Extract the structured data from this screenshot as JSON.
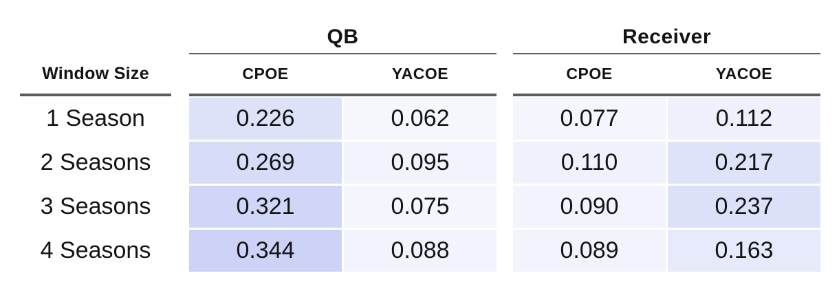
{
  "table": {
    "row_header": "Window Size",
    "groups": [
      {
        "label": "QB",
        "columns": [
          "CPOE",
          "YACOE"
        ]
      },
      {
        "label": "Receiver",
        "columns": [
          "CPOE",
          "YACOE"
        ]
      }
    ],
    "rows": [
      {
        "label": "1 Season",
        "cells": [
          {
            "value": "0.226",
            "color": "#dee2f9"
          },
          {
            "value": "0.062",
            "color": "#f6f7fd"
          },
          {
            "value": "0.077",
            "color": "#f4f5fd"
          },
          {
            "value": "0.112",
            "color": "#eef1fc"
          }
        ]
      },
      {
        "label": "2 Seasons",
        "cells": [
          {
            "value": "0.269",
            "color": "#d7ddf8"
          },
          {
            "value": "0.095",
            "color": "#f1f3fd"
          },
          {
            "value": "0.110",
            "color": "#eff1fc"
          },
          {
            "value": "0.217",
            "color": "#dfe3f9"
          }
        ]
      },
      {
        "label": "3 Seasons",
        "cells": [
          {
            "value": "0.321",
            "color": "#cfd6f7"
          },
          {
            "value": "0.075",
            "color": "#f4f5fd"
          },
          {
            "value": "0.090",
            "color": "#f2f3fd"
          },
          {
            "value": "0.237",
            "color": "#dce1f9"
          }
        ]
      },
      {
        "label": "4 Seasons",
        "cells": [
          {
            "value": "0.344",
            "color": "#ccd3f6"
          },
          {
            "value": "0.088",
            "color": "#f2f4fd"
          },
          {
            "value": "0.089",
            "color": "#f2f4fd"
          },
          {
            "value": "0.163",
            "color": "#e7eafb"
          }
        ]
      }
    ]
  },
  "chart_data": {
    "type": "table",
    "row_label_header": "Window Size",
    "row_labels": [
      "1 Season",
      "2 Seasons",
      "3 Seasons",
      "4 Seasons"
    ],
    "column_groups": [
      "QB",
      "Receiver"
    ],
    "columns": [
      "QB CPOE",
      "QB YACOE",
      "Receiver CPOE",
      "Receiver YACOE"
    ],
    "values": [
      [
        0.226,
        0.062,
        0.077,
        0.112
      ],
      [
        0.269,
        0.095,
        0.11,
        0.217
      ],
      [
        0.321,
        0.075,
        0.09,
        0.237
      ],
      [
        0.344,
        0.088,
        0.089,
        0.163
      ]
    ],
    "heatmap": {
      "min_value": 0,
      "max_value": 0.344,
      "min_color": "#ffffff",
      "max_color": "#ccd3f6"
    }
  },
  "style": {
    "text_color": "#141414",
    "rule_color": "#5c5c5c",
    "background": "#ffffff"
  }
}
